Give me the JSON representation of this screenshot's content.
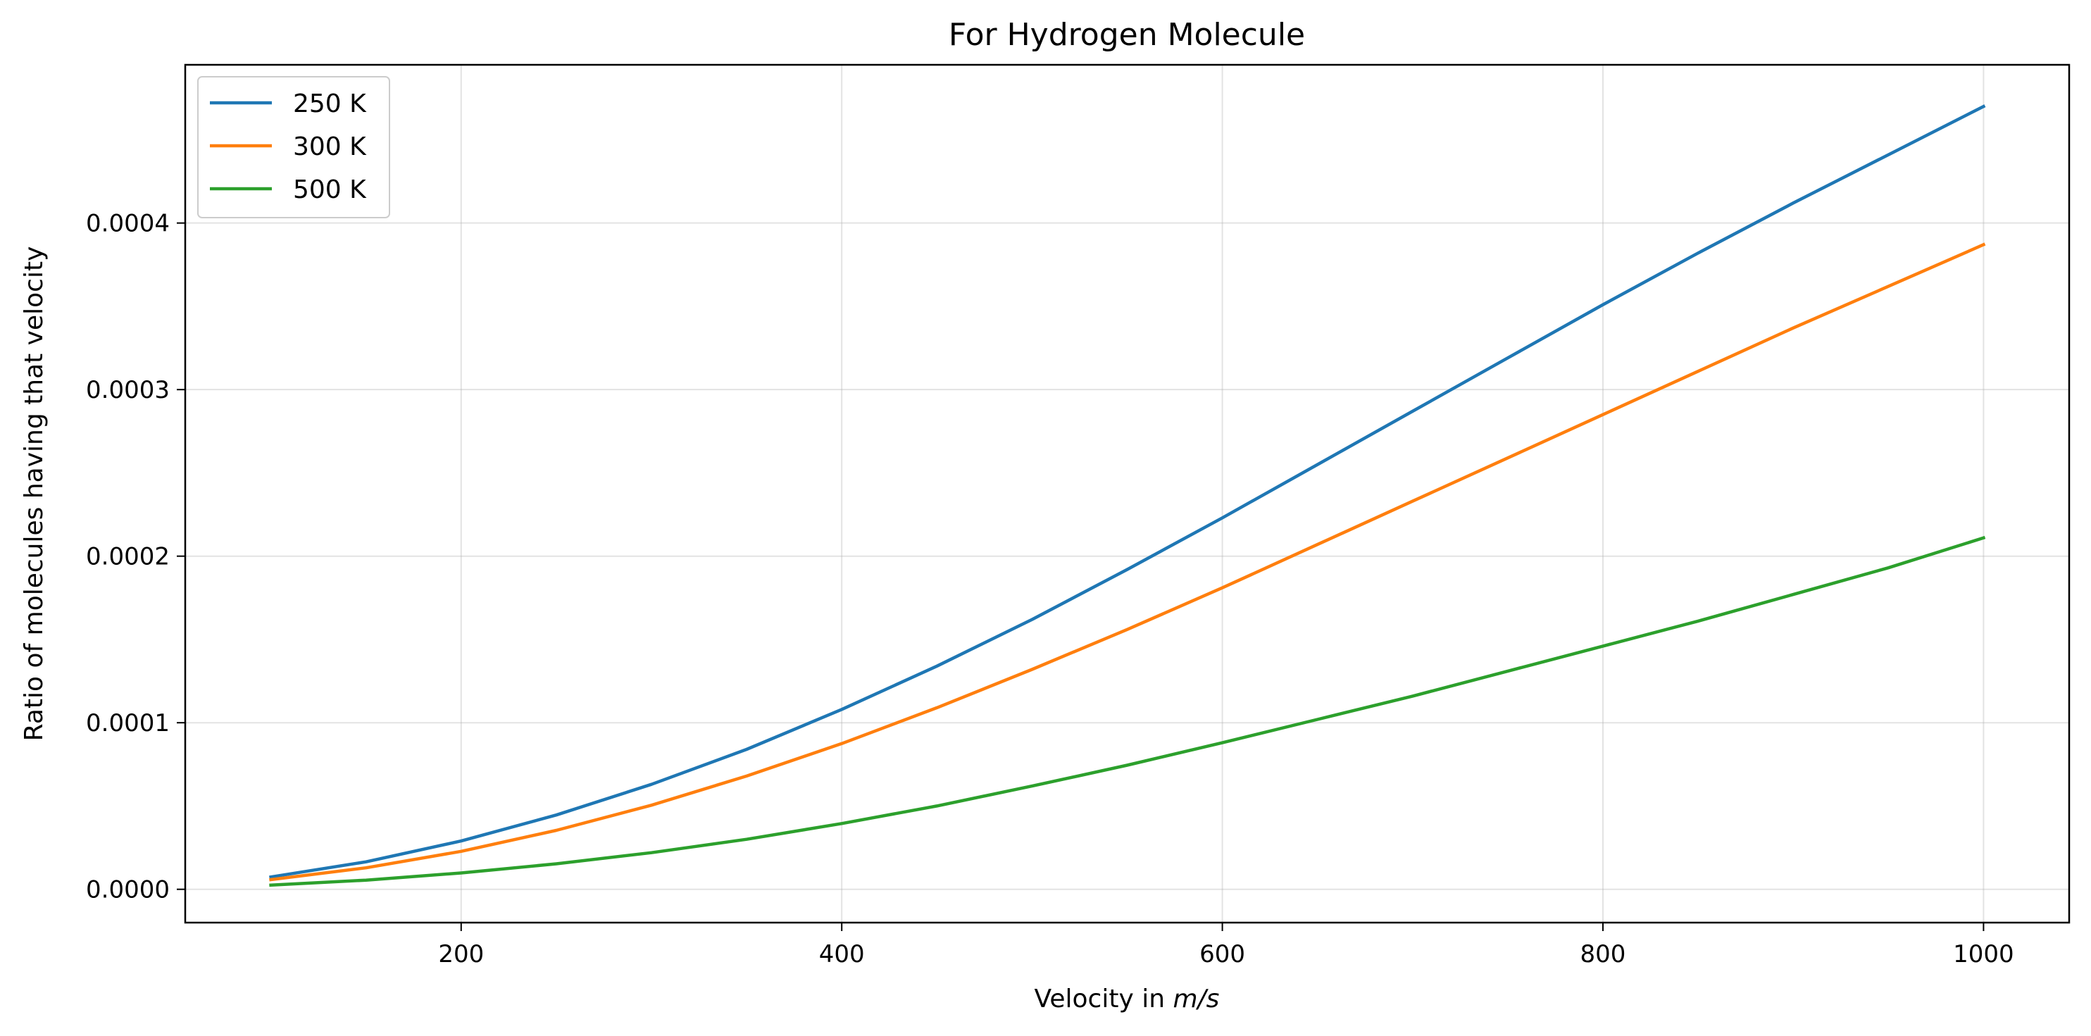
{
  "chart_data": {
    "type": "line",
    "title": "For Hydrogen Molecule",
    "xlabel": "Velocity in m/s",
    "xlabel_prefix": "Velocity in ",
    "xlabel_unit": "m/s",
    "ylabel": "Ratio of molecules having that velocity",
    "xlim": [
      55,
      1045
    ],
    "ylim": [
      -2e-05,
      0.000495
    ],
    "xticks": [
      200,
      400,
      600,
      800,
      1000
    ],
    "yticks": [
      0,
      0.0001,
      0.0002,
      0.0003,
      0.0004
    ],
    "xtick_labels": [
      "200",
      "400",
      "600",
      "800",
      "1000"
    ],
    "ytick_labels": [
      "0.0000",
      "0.0001",
      "0.0002",
      "0.0003",
      "0.0004"
    ],
    "grid": true,
    "legend_position": "top-left",
    "x": [
      100,
      150,
      200,
      250,
      300,
      350,
      400,
      450,
      500,
      550,
      600,
      650,
      700,
      750,
      800,
      850,
      900,
      950,
      1000
    ],
    "series": [
      {
        "name": "250 K",
        "color": "#1f77b4",
        "values": [
          7.4e-06,
          1.65e-05,
          2.9e-05,
          4.46e-05,
          6.3e-05,
          8.4e-05,
          0.000108,
          0.000134,
          0.000162,
          0.000192,
          0.000223,
          0.000255,
          0.000287,
          0.000319,
          0.000351,
          0.000382,
          0.000412,
          0.000441,
          0.00047
        ]
      },
      {
        "name": "300 K",
        "color": "#ff7f0e",
        "values": [
          5.8e-06,
          1.29e-05,
          2.28e-05,
          3.54e-05,
          5.05e-05,
          6.8e-05,
          8.75e-05,
          0.000109,
          0.000132,
          0.000156,
          0.000181,
          0.000207,
          0.000233,
          0.000259,
          0.000285,
          0.000311,
          0.000337,
          0.000362,
          0.000387
        ]
      },
      {
        "name": "500 K",
        "color": "#2ca02c",
        "values": [
          2.5e-06,
          5.5e-06,
          9.8e-06,
          1.53e-05,
          2.2e-05,
          3e-05,
          3.95e-05,
          5e-05,
          6.2e-05,
          7.45e-05,
          8.8e-05,
          0.000102,
          0.000116,
          0.000131,
          0.000146,
          0.000161,
          0.000177,
          0.000193,
          0.000211
        ]
      }
    ]
  }
}
